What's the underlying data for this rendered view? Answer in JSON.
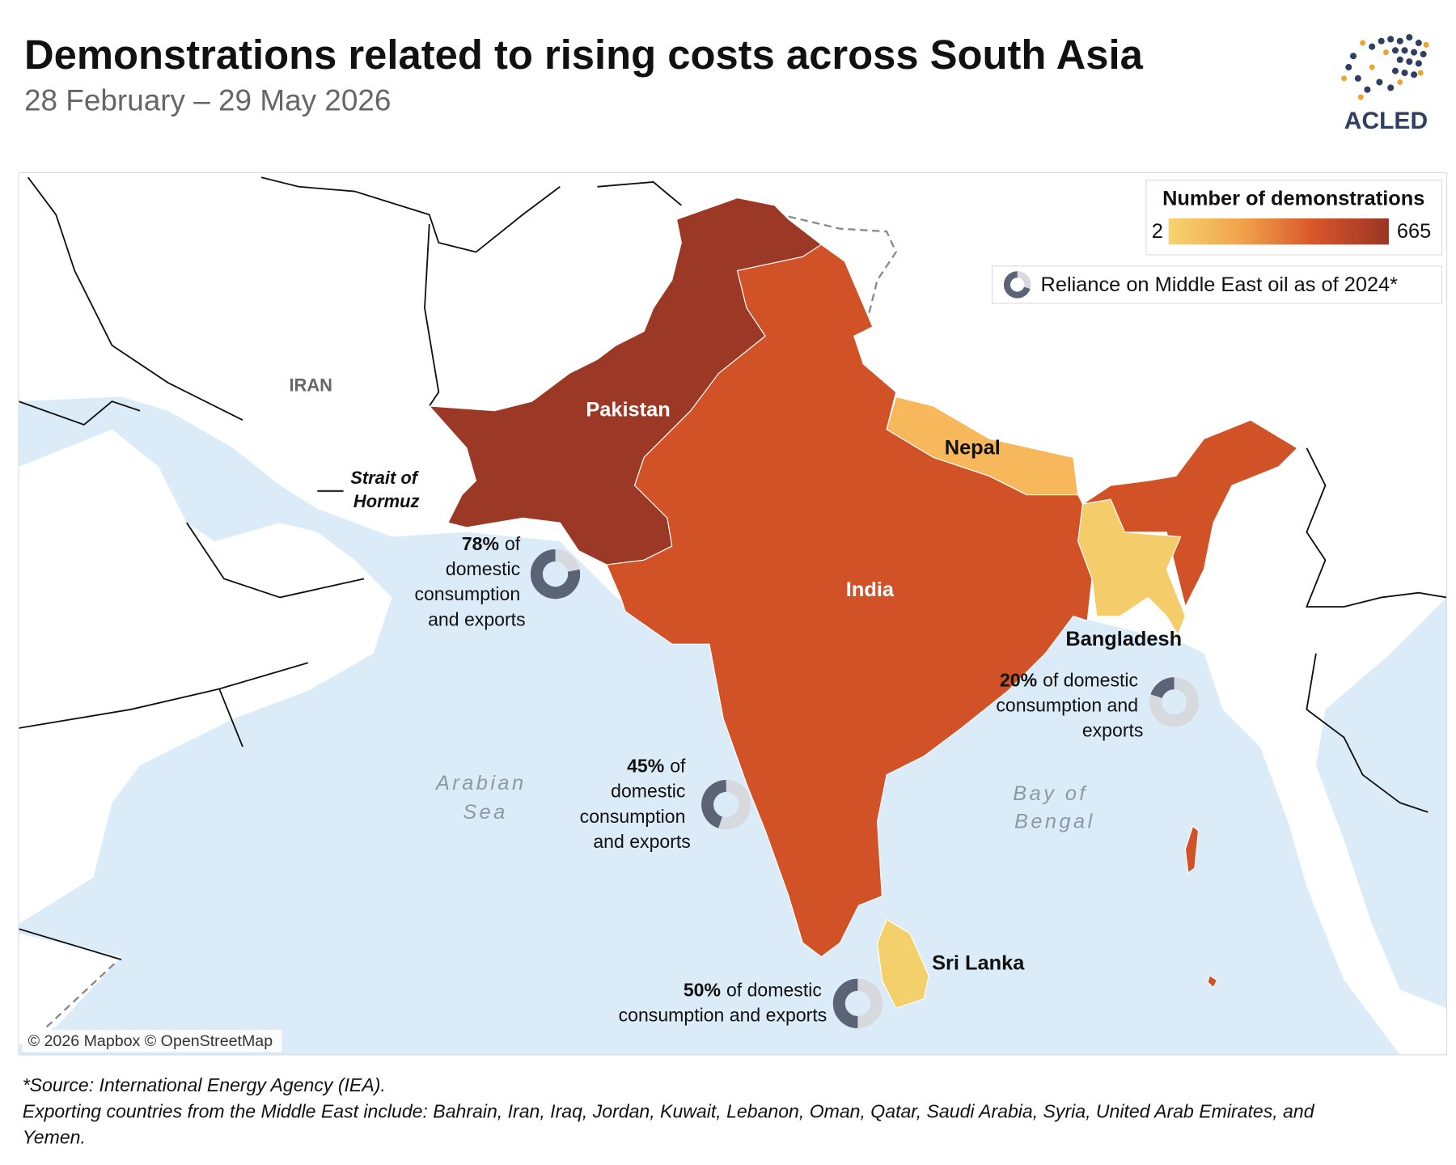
{
  "header": {
    "title": "Demonstrations related to rising costs across South Asia",
    "subtitle": "28 February – 29 May 2026",
    "logo": "ACLED"
  },
  "legend": {
    "title": "Number of demonstrations",
    "min": 2,
    "max": 665,
    "colors": [
      "#f6d470",
      "#f1a24a",
      "#d8552a",
      "#9a3525"
    ],
    "donut_label": "Reliance on Middle East oil as of 2024*",
    "donut_colors": {
      "share": "#5b6377",
      "rest": "#d6d9dd"
    }
  },
  "countries": [
    {
      "name": "Pakistan",
      "color": "#9c3826"
    },
    {
      "name": "India",
      "color": "#d15226"
    },
    {
      "name": "Nepal",
      "color": "#f7b85c"
    },
    {
      "name": "Bangladesh",
      "color": "#f4cd6a"
    },
    {
      "name": "Sri Lanka",
      "color": "#f3d06c"
    }
  ],
  "labels": [
    "IRAN",
    "Arabian Sea",
    "Bay of Bengal",
    "Strait of Hormuz"
  ],
  "annotations": [
    {
      "value": 78,
      "value_label": "78%",
      "text": "of domestic consumption and exports"
    },
    {
      "value": 20,
      "value_label": "20%",
      "text": "of domestic consumption and exports"
    },
    {
      "value": 45,
      "value_label": "45%",
      "text": "of domestic consumption and exports"
    },
    {
      "value": 50,
      "value_label": "50%",
      "text": "of domestic consumption and exports"
    }
  ],
  "attribution": "© 2026 Mapbox © OpenStreetMap",
  "footnotes": [
    "*Source: International Energy Agency (IEA).",
    "Exporting countries from the Middle East include: Bahrain, Iran, Iraq, Jordan, Kuwait, Lebanon, Oman, Qatar, Saudi Arabia, Syria, United Arab Emirates, and Yemen."
  ]
}
